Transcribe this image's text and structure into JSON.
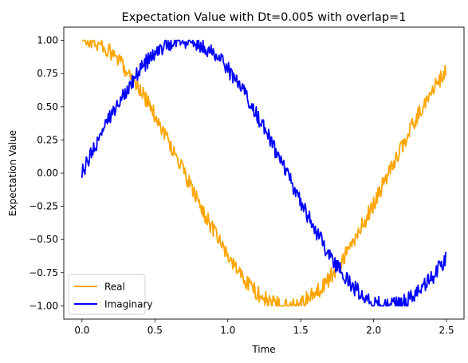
{
  "chart_data": {
    "type": "line",
    "title": "Expectation Value with Dt=0.005 with overlap=1",
    "xlabel": "Time",
    "ylabel": "Expectation Value",
    "xlim": [
      -0.125,
      2.62
    ],
    "ylim": [
      -1.1,
      1.1
    ],
    "x_ticks": [
      {
        "value": 0.0,
        "label": "0.0"
      },
      {
        "value": 0.5,
        "label": "0.5"
      },
      {
        "value": 1.0,
        "label": "1.0"
      },
      {
        "value": 1.5,
        "label": "1.5"
      },
      {
        "value": 2.0,
        "label": "2.0"
      },
      {
        "value": 2.5,
        "label": "2.5"
      }
    ],
    "y_ticks": [
      {
        "value": -1.0,
        "label": "−1.00"
      },
      {
        "value": -0.75,
        "label": "−0.75"
      },
      {
        "value": -0.5,
        "label": "−0.50"
      },
      {
        "value": -0.25,
        "label": "−0.25"
      },
      {
        "value": 0.0,
        "label": "0.00"
      },
      {
        "value": 0.25,
        "label": "0.25"
      },
      {
        "value": 0.5,
        "label": "0.50"
      },
      {
        "value": 0.75,
        "label": "0.75"
      },
      {
        "value": 1.0,
        "label": "1.00"
      }
    ],
    "grid": false,
    "legend_position": "lower-left",
    "sampling": {
      "x_start": 0.0,
      "x_end": 2.495,
      "dt": 0.005
    },
    "series": [
      {
        "name": "Real",
        "color": "#ffa500",
        "noise_amplitude": 0.06,
        "phase": 0.0
      },
      {
        "name": "Imaginary",
        "color": "#0000ff",
        "noise_amplitude": 0.06,
        "phase": -1.5708
      }
    ],
    "angular_frequency": 2.24
  }
}
